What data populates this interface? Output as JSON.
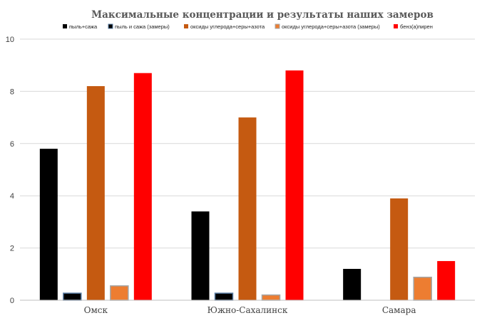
{
  "chart_data": {
    "type": "bar",
    "title": "Максимальные концентрации и результаты наших замеров",
    "xlabel": "",
    "ylabel": "",
    "ylim": [
      0,
      10
    ],
    "yticks": [
      0,
      2,
      4,
      6,
      8,
      10
    ],
    "grid": true,
    "legend_position": "top",
    "categories": [
      "Омск",
      "Южно-Сахалинск",
      "Самара"
    ],
    "series": [
      {
        "name": "пыль+сажа",
        "color": "#000000",
        "values": [
          5.8,
          3.4,
          1.2
        ]
      },
      {
        "name": "пыль и сажа (замеры)",
        "color": "#000000",
        "outline": "#5b7fa6",
        "values": [
          0.27,
          0.27,
          0
        ]
      },
      {
        "name": "оксиды углерода+серы+азота",
        "color": "#c55a11",
        "values": [
          8.2,
          7.0,
          3.9
        ]
      },
      {
        "name": "оксиды углерода+серы+азота (замеры)",
        "color": "#ed7d31",
        "outline": "#a5a5a5",
        "values": [
          0.55,
          0.2,
          0.88
        ]
      },
      {
        "name": "бенз(а)пирен",
        "color": "#ff0000",
        "values": [
          8.7,
          8.8,
          1.5
        ]
      }
    ]
  }
}
